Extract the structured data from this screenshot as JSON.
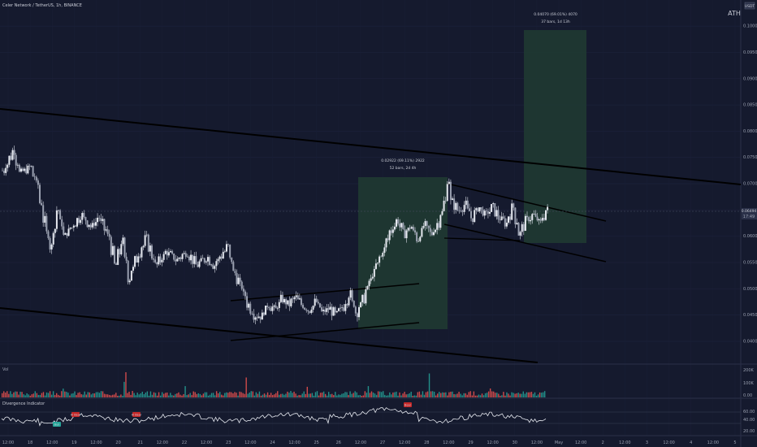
{
  "header": {
    "title": "Celer Network / TetherUS, 1h, BINANCE",
    "currency_badge": "USDT",
    "ath_label": "ATH"
  },
  "chart_data": {
    "type": "candlestick",
    "price_axis": {
      "ticks": [
        "0.10000",
        "0.09500",
        "0.09000",
        "0.08500",
        "0.08000",
        "0.07500",
        "0.07000",
        "0.06500",
        "0.06000",
        "0.05500",
        "0.05000",
        "0.04500",
        "0.04000"
      ],
      "ylim": [
        0.0369,
        0.1042
      ],
      "last_price": "0.06494",
      "last_price_sub": "17:49"
    },
    "time_axis": {
      "ticks": [
        "12:00",
        "18",
        "12:00",
        "19",
        "12:00",
        "20",
        "21",
        "12:00",
        "22",
        "12:00",
        "23",
        "12:00",
        "24",
        "12:00",
        "25",
        "26",
        "12:00",
        "27",
        "12:00",
        "28",
        "12:00",
        "29",
        "12:00",
        "30",
        "12:00",
        "May",
        "12:00",
        "2",
        "12:00",
        "3",
        "12:00",
        "4",
        "12:00",
        "5"
      ]
    },
    "close_path": [
      [
        0,
        0.0725
      ],
      [
        3,
        0.0763
      ],
      [
        5,
        0.072
      ],
      [
        8,
        0.0731
      ],
      [
        10,
        0.0698
      ],
      [
        12,
        0.063
      ],
      [
        14,
        0.058
      ],
      [
        16,
        0.065
      ],
      [
        18,
        0.06
      ],
      [
        21,
        0.0625
      ],
      [
        23,
        0.064
      ],
      [
        26,
        0.0618
      ],
      [
        28,
        0.0636
      ],
      [
        31,
        0.06
      ],
      [
        33,
        0.0545
      ],
      [
        35,
        0.059
      ],
      [
        37,
        0.052
      ],
      [
        39,
        0.0555
      ],
      [
        42,
        0.0595
      ],
      [
        45,
        0.0545
      ],
      [
        48,
        0.057
      ],
      [
        51,
        0.0555
      ],
      [
        54,
        0.057
      ],
      [
        57,
        0.0545
      ],
      [
        60,
        0.056
      ],
      [
        62,
        0.0545
      ],
      [
        64,
        0.0562
      ],
      [
        66,
        0.058
      ],
      [
        68,
        0.053
      ],
      [
        70,
        0.0505
      ],
      [
        72,
        0.047
      ],
      [
        74,
        0.045
      ],
      [
        76,
        0.0448
      ],
      [
        78,
        0.047
      ],
      [
        80,
        0.046
      ],
      [
        82,
        0.048
      ],
      [
        84,
        0.047
      ],
      [
        86,
        0.0483
      ],
      [
        88,
        0.047
      ],
      [
        90,
        0.046
      ],
      [
        92,
        0.0475
      ],
      [
        94,
        0.0455
      ],
      [
        96,
        0.0462
      ],
      [
        98,
        0.045
      ],
      [
        100,
        0.0465
      ],
      [
        102,
        0.049
      ],
      [
        104,
        0.0455
      ],
      [
        106,
        0.048
      ],
      [
        108,
        0.0515
      ],
      [
        110,
        0.0545
      ],
      [
        112,
        0.0575
      ],
      [
        114,
        0.061
      ],
      [
        116,
        0.063
      ],
      [
        118,
        0.0605
      ],
      [
        120,
        0.0618
      ],
      [
        122,
        0.0595
      ],
      [
        124,
        0.062
      ],
      [
        126,
        0.0605
      ],
      [
        128,
        0.0625
      ],
      [
        130,
        0.0665
      ],
      [
        131,
        0.0708
      ],
      [
        132,
        0.0665
      ],
      [
        134,
        0.065
      ],
      [
        136,
        0.066
      ],
      [
        138,
        0.0635
      ],
      [
        140,
        0.0655
      ],
      [
        142,
        0.064
      ],
      [
        144,
        0.0655
      ],
      [
        146,
        0.0635
      ],
      [
        148,
        0.0625
      ],
      [
        150,
        0.0655
      ],
      [
        152,
        0.0605
      ],
      [
        154,
        0.063
      ],
      [
        156,
        0.064
      ],
      [
        158,
        0.0625
      ],
      [
        160,
        0.065
      ]
    ],
    "volume_axis": {
      "ticks": [
        "200K",
        "100K",
        "0.00"
      ]
    },
    "volume_spikes": [
      5,
      20,
      50,
      35,
      80,
      40,
      28,
      100,
      22
    ],
    "indicator": {
      "title": "Divergence Indicator",
      "ticks": [
        "60.00",
        "40.00",
        "20.00"
      ],
      "labels": [
        "Bull",
        "Hi Bear",
        "Hi Bear",
        "Bear"
      ]
    },
    "annotations": {
      "long1_line1": "0.02922 (69.11%) 2922",
      "long1_line2": "52 bars, 2d 4h",
      "long2_line1": "0.04070 (69.01%) 4070",
      "long2_line2": "37 bars, 1d 13h"
    }
  },
  "colors": {
    "bg": "#151a2e",
    "up": "#d8dce6",
    "down": "#d8dce6",
    "line": "#000000",
    "zone": "#2d4a3a",
    "vol_up": "#26a69a",
    "vol_down": "#ef5350"
  }
}
